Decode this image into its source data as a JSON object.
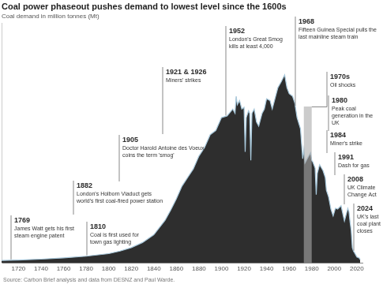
{
  "chart_data": {
    "type": "area",
    "title": "Coal power phaseout pushes demand to lowest level since the 1600s",
    "subtitle": "Coal demand in million tonnes (Mt)",
    "source": "Source: Carbon Brief analysis and data from DESNZ and Paul Warde.",
    "x": [
      1705,
      1720,
      1740,
      1760,
      1780,
      1800,
      1810,
      1820,
      1830,
      1840,
      1850,
      1855,
      1860,
      1865,
      1870,
      1875,
      1880,
      1885,
      1890,
      1895,
      1900,
      1905,
      1910,
      1912,
      1913,
      1914,
      1916,
      1918,
      1920,
      1921,
      1922,
      1924,
      1925,
      1926,
      1927,
      1929,
      1931,
      1933,
      1936,
      1938,
      1940,
      1943,
      1945,
      1947,
      1950,
      1953,
      1956,
      1958,
      1960,
      1963,
      1965,
      1967,
      1970,
      1972,
      1973,
      1974,
      1976,
      1979,
      1980,
      1981,
      1983,
      1984,
      1985,
      1987,
      1990,
      1992,
      1993,
      1995,
      1997,
      1999,
      2001,
      2003,
      2006,
      2009,
      2012,
      2013,
      2014,
      2015,
      2016,
      2017,
      2018,
      2020,
      2022,
      2023
    ],
    "values": [
      3,
      3.5,
      4.5,
      6,
      8,
      11,
      14,
      18,
      24,
      33,
      50,
      62,
      75,
      90,
      100,
      110,
      125,
      135,
      150,
      155,
      170,
      172,
      180,
      175,
      195,
      185,
      190,
      180,
      182,
      130,
      170,
      178,
      175,
      120,
      175,
      180,
      165,
      160,
      175,
      180,
      192,
      190,
      180,
      190,
      205,
      212,
      220,
      205,
      198,
      195,
      187,
      170,
      157,
      122,
      133,
      117,
      122,
      129,
      120,
      118,
      111,
      80,
      105,
      115,
      108,
      100,
      85,
      77,
      63,
      55,
      64,
      63,
      67,
      49,
      64,
      60,
      48,
      38,
      18,
      14,
      12,
      7,
      6,
      4
    ],
    "color": "#2e2e2e",
    "xlim": [
      1705,
      2025
    ],
    "xticks": [
      1720,
      1740,
      1760,
      1780,
      1800,
      1820,
      1840,
      1860,
      1880,
      1900,
      1920,
      1940,
      1960,
      1980,
      2000,
      2020
    ],
    "ylim": [
      0,
      280
    ],
    "tick_labels": "x",
    "grid": false,
    "annotations": [
      {
        "label": "1769",
        "text": "James Watt gets his first steam engine patent"
      },
      {
        "label": "1810",
        "text": "Coal is first used for town gas lighting"
      },
      {
        "label": "1882",
        "text": "London's Holborn Viaduct gets world's first coal-fired power station"
      },
      {
        "label": "1905",
        "text": "Doctor Harold Antoine des Voeux coins the term 'smog'"
      },
      {
        "label": "1921 & 1926",
        "text": "Miners' strikes"
      },
      {
        "label": "1952",
        "text": "London's Great Smog kills at least 4,000"
      },
      {
        "label": "1968",
        "text": "Fifteen Guinea Special pulls the last mainline steam train"
      },
      {
        "label": "1970s",
        "text": "Oil shocks",
        "span": [
          1973,
          1980
        ]
      },
      {
        "label": "1980",
        "text": "Peak coal generation in the UK"
      },
      {
        "label": "1984",
        "text": "Miner's strike"
      },
      {
        "label": "1991",
        "text": "Dash for gas"
      },
      {
        "label": "2008",
        "text": "UK Climate Change Act"
      },
      {
        "label": "2024",
        "text": "UK's last coal plant closes"
      }
    ]
  }
}
